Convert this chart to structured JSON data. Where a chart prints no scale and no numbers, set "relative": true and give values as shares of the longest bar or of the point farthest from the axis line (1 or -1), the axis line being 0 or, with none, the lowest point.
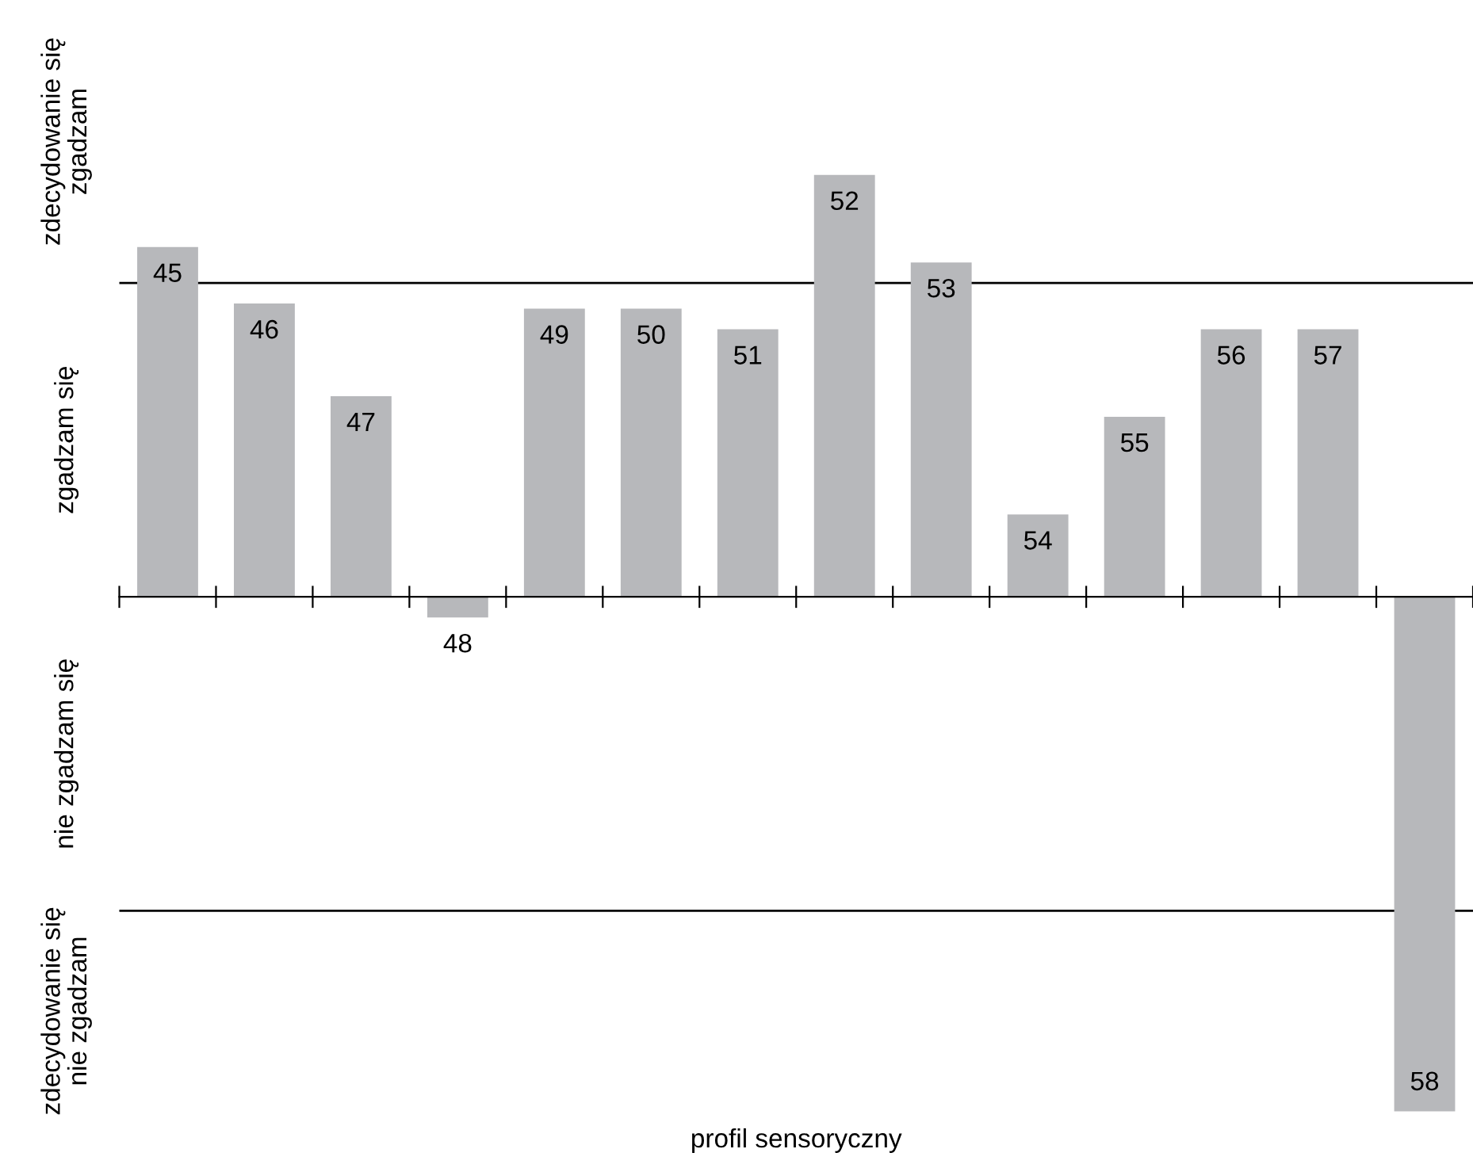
{
  "chart_data": {
    "type": "bar",
    "xlabel": "profil sensoryczny",
    "relative": true,
    "categories": [
      "45",
      "46",
      "47",
      "48",
      "49",
      "50",
      "51",
      "52",
      "53",
      "54",
      "55",
      "56",
      "57",
      "58"
    ],
    "values": [
      0.68,
      0.57,
      0.39,
      -0.04,
      0.56,
      0.56,
      0.52,
      0.82,
      0.65,
      0.16,
      0.35,
      0.52,
      0.52,
      -1
    ],
    "color": "#b7b8bb",
    "annotations": [
      "zdecydowanie się\nzgadzam",
      "zgadzam się",
      "nie zgadzam się",
      "zdecydowanie się\nnie zgadzam"
    ],
    "ref_lines": [
      {
        "axis": "y",
        "value": 0.61,
        "color": "#000000"
      },
      {
        "axis": "y",
        "value": -0.61,
        "color": "#000000"
      }
    ],
    "grid": false
  }
}
